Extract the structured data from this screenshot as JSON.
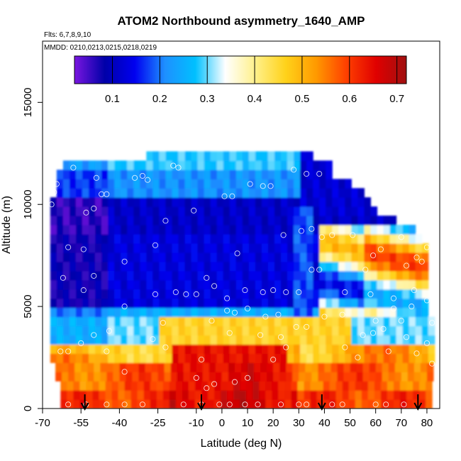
{
  "chart_data": {
    "type": "heatmap",
    "title": "ATOM2 Northbound asymmetry_1640_AMP",
    "subtitle_flights": "Flts: 6,7,8,9,10",
    "subtitle_dates": "MMDD: 0210,0213,0215,0218,0219",
    "xlabel": "Latitude (deg N)",
    "ylabel": "Altitude (m)",
    "xlim": [
      -70,
      85
    ],
    "ylim": [
      0,
      18000
    ],
    "x_ticks": [
      -70,
      -55,
      -40,
      -25,
      -10,
      0,
      10,
      20,
      30,
      40,
      50,
      60,
      70,
      80
    ],
    "x_tick_labels": [
      "-70",
      "-55",
      "-40",
      "-25",
      "-10",
      "0",
      "10",
      "20",
      "30",
      "40",
      "50",
      "60",
      "70",
      "80"
    ],
    "y_ticks": [
      0,
      5000,
      10000,
      15000
    ],
    "y_tick_labels": [
      "0",
      "5000",
      "10000",
      "15000"
    ],
    "colorbar": {
      "min": 0.02,
      "max": 0.72,
      "ticks": [
        0.1,
        0.2,
        0.3,
        0.4,
        0.5,
        0.6,
        0.7
      ],
      "tick_labels": [
        "0.1",
        "0.2",
        "0.3",
        "0.4",
        "0.5",
        "0.6",
        "0.7"
      ],
      "colors": [
        "#7a16e0",
        "#0000a8",
        "#0000f0",
        "#1e90ff",
        "#00c0ff",
        "#ffffff",
        "#fff08a",
        "#ffd21a",
        "#ff9a00",
        "#ff4000",
        "#e00000",
        "#a01010"
      ]
    },
    "arrows_lat": [
      -53.5,
      -8,
      39,
      76.5
    ],
    "points": [
      [
        -66.5,
        10000
      ],
      [
        -65.5,
        10600
      ],
      [
        -64.5,
        11000
      ],
      [
        -58,
        11800
      ],
      [
        -49,
        11300
      ],
      [
        -34,
        11300
      ],
      [
        -31,
        11400
      ],
      [
        -29,
        11200
      ],
      [
        -19,
        11900
      ],
      [
        -17,
        11800
      ],
      [
        1,
        10400
      ],
      [
        4,
        10400
      ],
      [
        11,
        11000
      ],
      [
        16,
        10900
      ],
      [
        19,
        10900
      ],
      [
        28,
        11700
      ],
      [
        33,
        11500
      ],
      [
        38,
        11500
      ],
      [
        -47,
        10500
      ],
      [
        -45,
        10500
      ],
      [
        -53,
        9600
      ],
      [
        -50,
        9800
      ],
      [
        -11,
        9700
      ],
      [
        -22,
        9200
      ],
      [
        31,
        8700
      ],
      [
        24,
        8500
      ],
      [
        35,
        8800
      ],
      [
        39,
        8400
      ],
      [
        43,
        8500
      ],
      [
        51,
        8500
      ],
      [
        62,
        7800
      ],
      [
        59,
        7500
      ],
      [
        70,
        8400
      ],
      [
        72,
        7000
      ],
      [
        76,
        7400
      ],
      [
        78,
        7200
      ],
      [
        80,
        7900
      ],
      [
        -60,
        7900
      ],
      [
        -54,
        7800
      ],
      [
        -26,
        8000
      ],
      [
        6,
        7600
      ],
      [
        -38,
        7200
      ],
      [
        -62,
        6400
      ],
      [
        -50,
        6500
      ],
      [
        -10,
        5600
      ],
      [
        -14,
        5600
      ],
      [
        -6,
        6400
      ],
      [
        -3,
        6000
      ],
      [
        9,
        5800
      ],
      [
        16,
        5700
      ],
      [
        20,
        5800
      ],
      [
        35,
        6800
      ],
      [
        38,
        6800
      ],
      [
        56,
        6800
      ],
      [
        -54,
        5800
      ],
      [
        -26,
        5600
      ],
      [
        -18,
        5700
      ],
      [
        25,
        5700
      ],
      [
        30,
        5700
      ],
      [
        48,
        5700
      ],
      [
        58,
        5600
      ],
      [
        67,
        5400
      ],
      [
        75,
        5800
      ],
      [
        80,
        5300
      ],
      [
        2,
        5400
      ],
      [
        -38,
        5000
      ],
      [
        2,
        4800
      ],
      [
        5,
        4700
      ],
      [
        10,
        4900
      ],
      [
        17,
        4500
      ],
      [
        22,
        4600
      ],
      [
        40,
        4500
      ],
      [
        47,
        4600
      ],
      [
        60,
        4300
      ],
      [
        67,
        4900
      ],
      [
        70,
        4300
      ],
      [
        74,
        5000
      ],
      [
        82,
        4200
      ],
      [
        -4,
        4300
      ],
      [
        -23,
        4200
      ],
      [
        29,
        4000
      ],
      [
        33,
        4000
      ],
      [
        -50,
        3600
      ],
      [
        -44,
        3800
      ],
      [
        3,
        3700
      ],
      [
        15,
        3600
      ],
      [
        23,
        3500
      ],
      [
        55,
        3600
      ],
      [
        59,
        3700
      ],
      [
        63,
        3900
      ],
      [
        72,
        3500
      ],
      [
        80,
        3200
      ],
      [
        -63,
        2800
      ],
      [
        -60,
        2800
      ],
      [
        -55,
        3200
      ],
      [
        -45,
        2800
      ],
      [
        -27,
        3400
      ],
      [
        -22,
        3000
      ],
      [
        25,
        3000
      ],
      [
        48,
        3000
      ],
      [
        -8,
        2400
      ],
      [
        20,
        2400
      ],
      [
        53,
        2500
      ],
      [
        65,
        2800
      ],
      [
        76,
        2700
      ],
      [
        82,
        2200
      ],
      [
        -38,
        1800
      ],
      [
        -10,
        1500
      ],
      [
        -3,
        1200
      ],
      [
        5,
        1300
      ],
      [
        10,
        1500
      ],
      [
        -6,
        1000
      ],
      [
        -60,
        200
      ],
      [
        -53,
        200
      ],
      [
        -45,
        200
      ],
      [
        -38,
        200
      ],
      [
        -31,
        200
      ],
      [
        -15,
        200
      ],
      [
        -8,
        200
      ],
      [
        -1,
        200
      ],
      [
        3,
        200
      ],
      [
        9,
        200
      ],
      [
        14,
        200
      ],
      [
        23,
        200
      ],
      [
        30,
        200
      ],
      [
        33,
        200
      ],
      [
        43,
        200
      ],
      [
        47,
        200
      ],
      [
        60,
        200
      ],
      [
        64,
        200
      ],
      [
        71,
        200
      ]
    ]
  }
}
